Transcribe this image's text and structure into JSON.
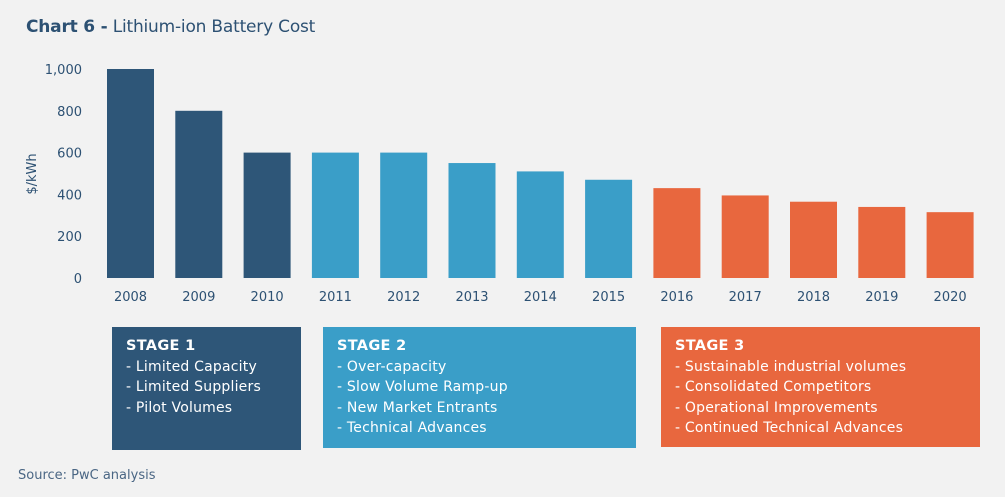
{
  "title": {
    "prefix": "Chart 6 -",
    "text": "Lithium-ion Battery Cost"
  },
  "chart_data": {
    "type": "bar",
    "title": "Chart 6 - Lithium-ion Battery Cost",
    "xlabel": "",
    "ylabel": "$/kWh",
    "ylim": [
      0,
      1000
    ],
    "yticks": [
      0,
      200,
      400,
      600,
      800,
      1000
    ],
    "ytick_labels": [
      "0",
      "200",
      "400",
      "600",
      "800",
      "1,000"
    ],
    "grid": false,
    "categories": [
      "2008",
      "2009",
      "2010",
      "2011",
      "2012",
      "2013",
      "2014",
      "2015",
      "2016",
      "2017",
      "2018",
      "2019",
      "2020"
    ],
    "values": [
      1000,
      800,
      600,
      600,
      600,
      550,
      510,
      470,
      430,
      395,
      365,
      340,
      315
    ],
    "bar_stage": [
      1,
      1,
      1,
      2,
      2,
      2,
      2,
      2,
      3,
      3,
      3,
      3,
      3
    ],
    "stage_colors": {
      "1": "#2e5678",
      "2": "#3a9ec8",
      "3": "#e8673e"
    }
  },
  "stages": [
    {
      "title": "STAGE 1",
      "color": "#2e5678",
      "items": [
        "- Limited Capacity",
        "- Limited Suppliers",
        "- Pilot Volumes"
      ]
    },
    {
      "title": "STAGE 2",
      "color": "#3a9ec8",
      "items": [
        "- Over-capacity",
        "- Slow Volume Ramp-up",
        "- New Market Entrants",
        "- Technical Advances"
      ]
    },
    {
      "title": "STAGE 3",
      "color": "#e8673e",
      "items": [
        "- Sustainable industrial volumes",
        "- Consolidated Competitors",
        "- Operational Improvements",
        "- Continued Technical Advances"
      ]
    }
  ],
  "source": "Source: PwC analysis"
}
